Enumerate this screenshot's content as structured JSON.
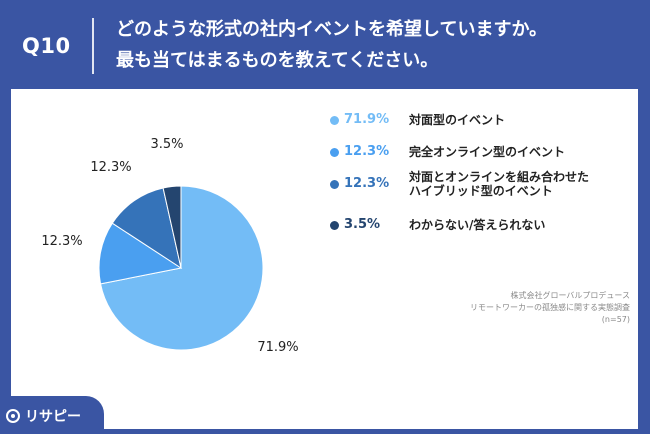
{
  "header": {
    "question_number": "Q10",
    "question_line1": "どのような形式の社内イベントを希望していますか。",
    "question_line2": "最も当てはまるものを教えてください。"
  },
  "chart_data": {
    "type": "pie",
    "start": "top, clockwise",
    "series": [
      {
        "name": "対面型のイベント",
        "value": 71.9,
        "label": "71.9%",
        "color": "#73bcf6",
        "pct_color": "#73bcf6"
      },
      {
        "name": "完全オンライン型のイベント",
        "value": 12.3,
        "label": "12.3%",
        "color": "#4a9ff0",
        "pct_color": "#4a9ff0"
      },
      {
        "name": "対面とオンラインを組み合わせたハイブリッド型のイベント",
        "name_lines": [
          "対面とオンラインを組み合わせた",
          "ハイブリッド型のイベント"
        ],
        "value": 12.3,
        "label": "12.3%",
        "color": "#3573b9",
        "pct_color": "#3573b9"
      },
      {
        "name": "わからない/答えられない",
        "value": 3.5,
        "label": "3.5%",
        "color": "#24456f",
        "pct_color": "#24456f"
      }
    ]
  },
  "footer": {
    "line1": "株式会社グローバルプロデュース",
    "line2": "リモートワーカーの孤独感に関する実態調査",
    "line3": "(n=57)"
  },
  "logo": {
    "text": "リサピー"
  }
}
